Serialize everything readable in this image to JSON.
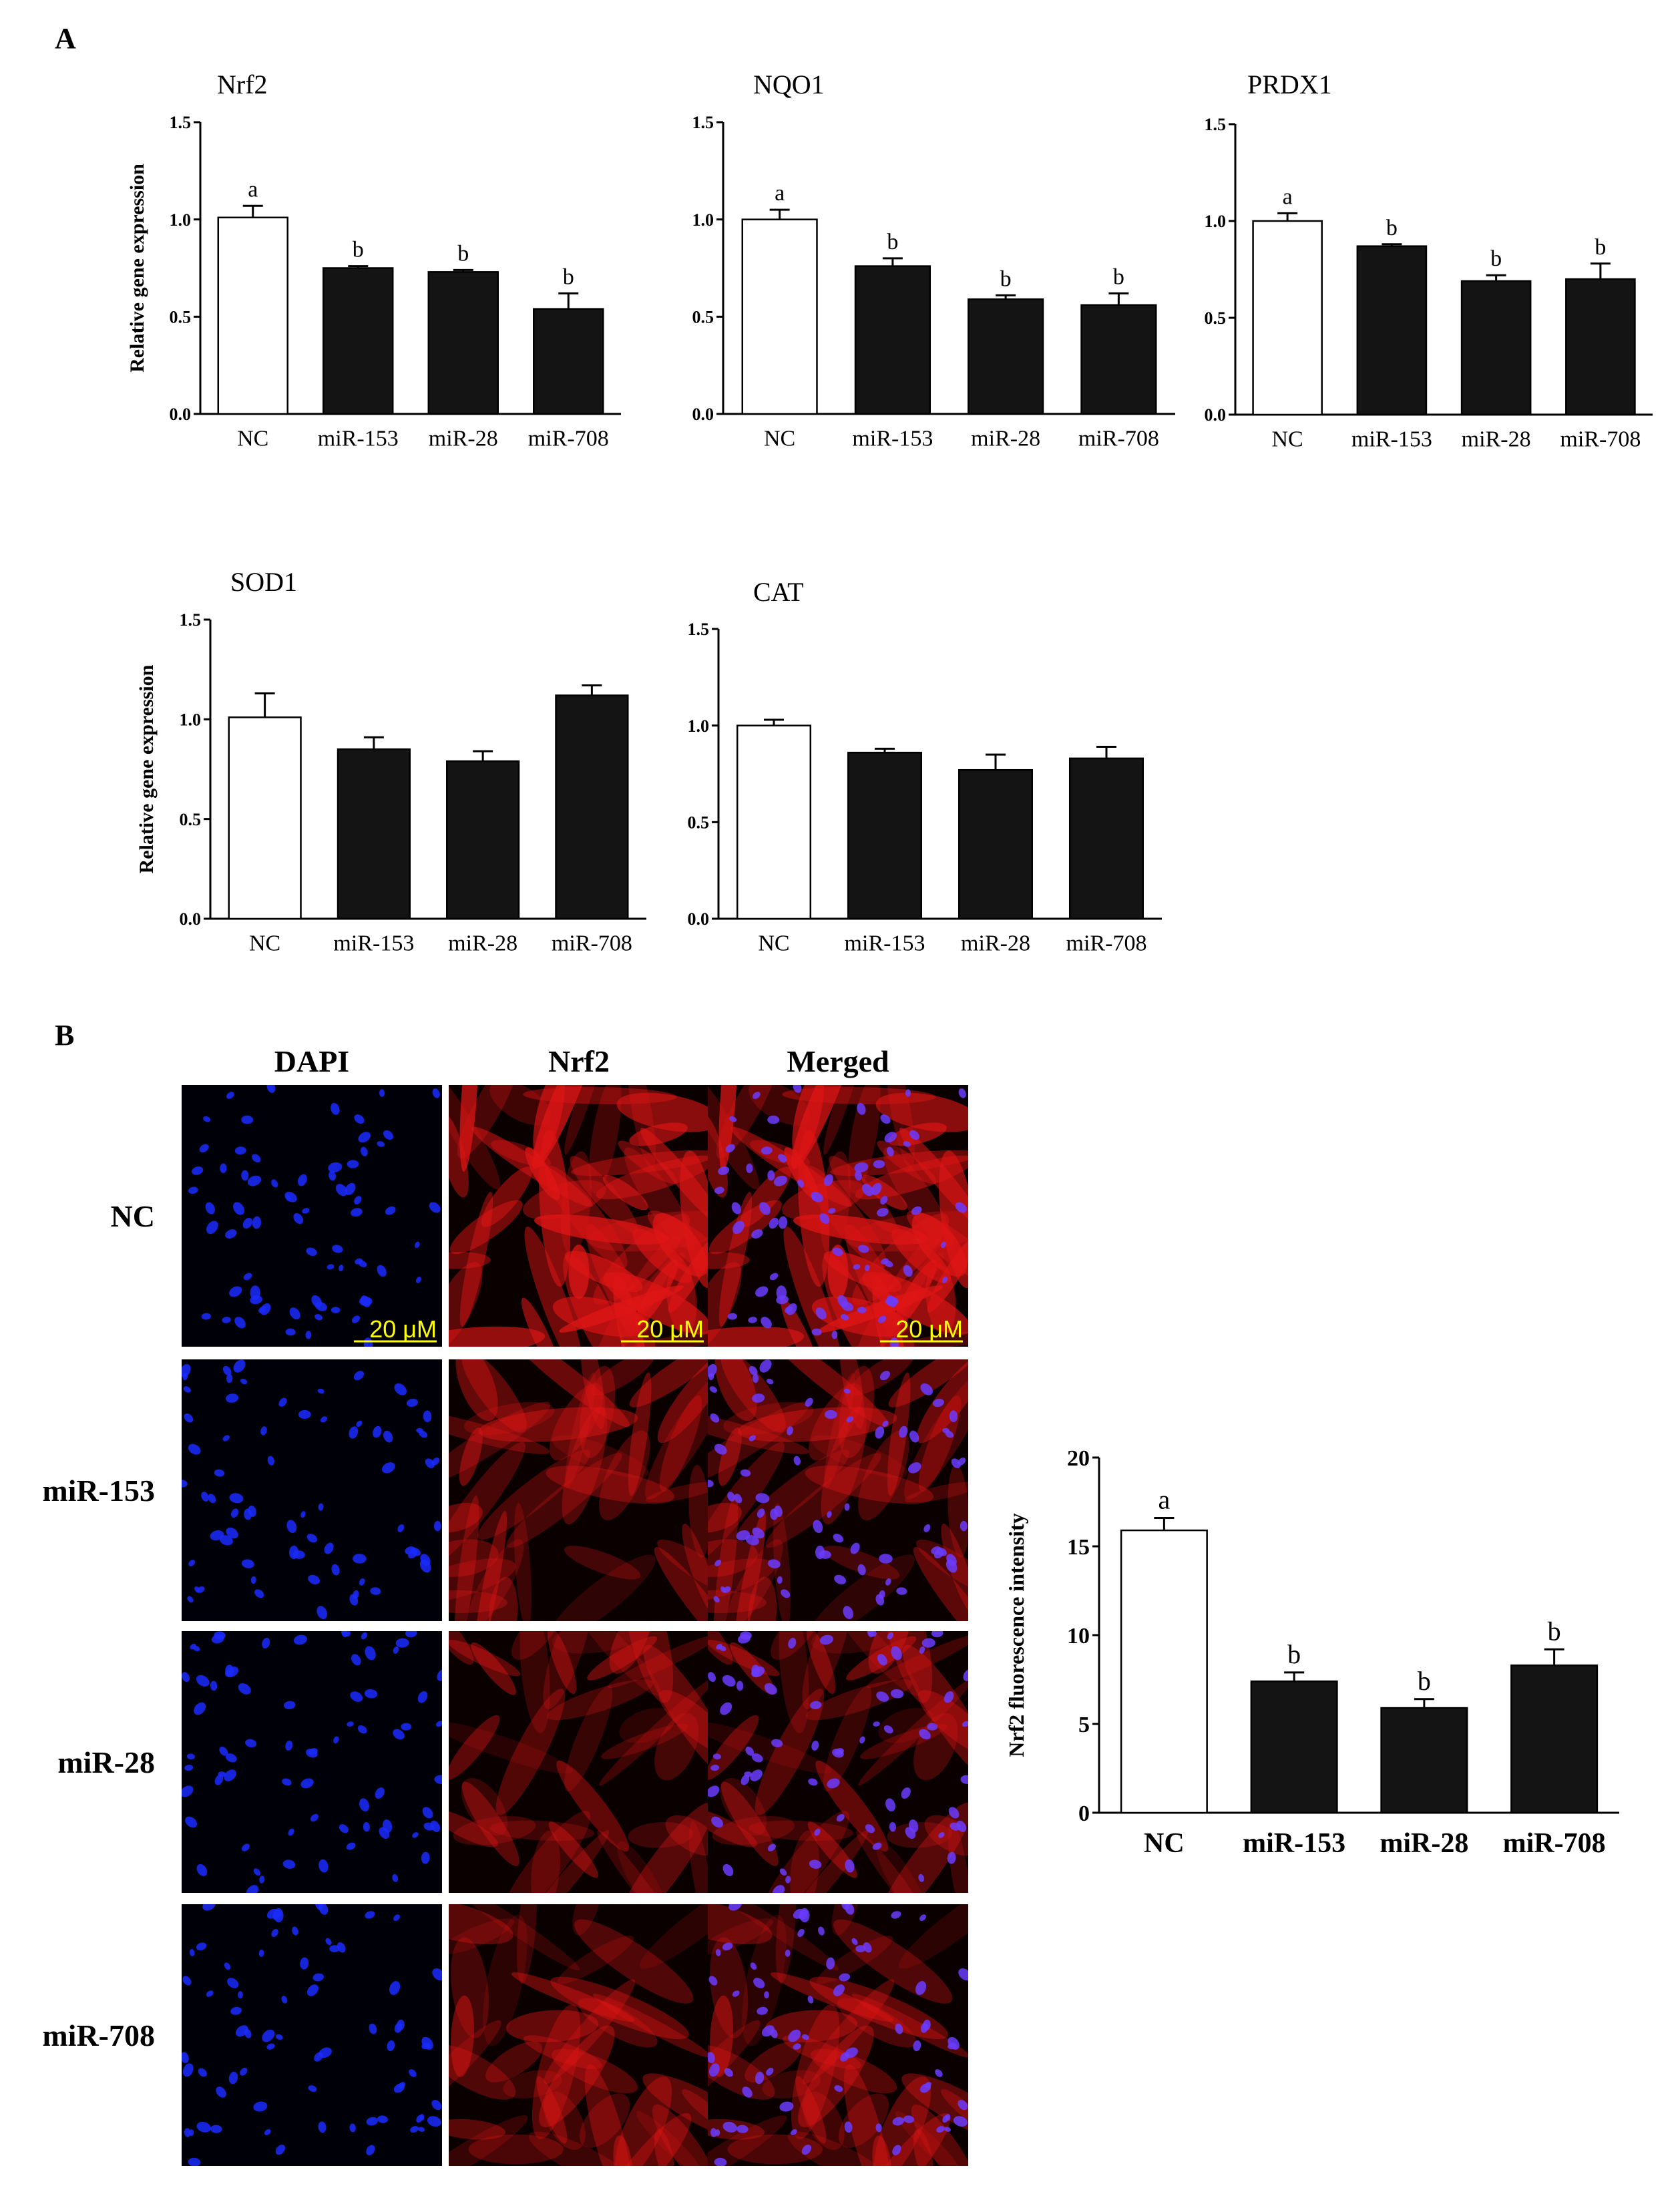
{
  "panel_a_label": "A",
  "panel_b_label": "B",
  "chart_data": [
    {
      "type": "bar",
      "title": "Nrf2",
      "ylabel": "Relative gene expression",
      "xlabel": "",
      "categories": [
        "NC",
        "miR-153",
        "miR-28",
        "miR-708"
      ],
      "values": [
        1.01,
        0.75,
        0.73,
        0.54
      ],
      "errors": [
        0.06,
        0.01,
        0.01,
        0.08
      ],
      "significance": [
        "a",
        "b",
        "b",
        "b"
      ],
      "ylim": [
        0,
        1.5
      ],
      "yticks": [
        "0.0",
        "0.5",
        "1.0",
        "1.5"
      ],
      "bar_colors": [
        "#ffffff",
        "#141414",
        "#141414",
        "#141414"
      ]
    },
    {
      "type": "bar",
      "title": "NQO1",
      "ylabel": "",
      "xlabel": "",
      "categories": [
        "NC",
        "miR-153",
        "miR-28",
        "miR-708"
      ],
      "values": [
        1.0,
        0.76,
        0.59,
        0.56
      ],
      "errors": [
        0.05,
        0.04,
        0.02,
        0.06
      ],
      "significance": [
        "a",
        "b",
        "b",
        "b"
      ],
      "ylim": [
        0,
        1.5
      ],
      "yticks": [
        "0.0",
        "0.5",
        "1.0",
        "1.5"
      ],
      "bar_colors": [
        "#ffffff",
        "#141414",
        "#141414",
        "#141414"
      ]
    },
    {
      "type": "bar",
      "title": "PRDX1",
      "ylabel": "",
      "xlabel": "",
      "categories": [
        "NC",
        "miR-153",
        "miR-28",
        "miR-708"
      ],
      "values": [
        1.0,
        0.87,
        0.69,
        0.7
      ],
      "errors": [
        0.04,
        0.01,
        0.03,
        0.08
      ],
      "significance": [
        "a",
        "b",
        "b",
        "b"
      ],
      "ylim": [
        0,
        1.5
      ],
      "yticks": [
        "0.0",
        "0.5",
        "1.0",
        "1.5"
      ],
      "bar_colors": [
        "#ffffff",
        "#141414",
        "#141414",
        "#141414"
      ]
    },
    {
      "type": "bar",
      "title": "SOD1",
      "ylabel": "Relative gene expression",
      "xlabel": "",
      "categories": [
        "NC",
        "miR-153",
        "miR-28",
        "miR-708"
      ],
      "values": [
        1.01,
        0.85,
        0.79,
        1.12
      ],
      "errors": [
        0.12,
        0.06,
        0.05,
        0.05
      ],
      "significance": [
        "",
        "",
        "",
        ""
      ],
      "ylim": [
        0,
        1.5
      ],
      "yticks": [
        "0.0",
        "0.5",
        "1.0",
        "1.5"
      ],
      "bar_colors": [
        "#ffffff",
        "#141414",
        "#141414",
        "#141414"
      ]
    },
    {
      "type": "bar",
      "title": "CAT",
      "ylabel": "",
      "xlabel": "",
      "categories": [
        "NC",
        "miR-153",
        "miR-28",
        "miR-708"
      ],
      "values": [
        1.0,
        0.86,
        0.77,
        0.83
      ],
      "errors": [
        0.03,
        0.02,
        0.08,
        0.06
      ],
      "significance": [
        "",
        "",
        "",
        ""
      ],
      "ylim": [
        0,
        1.5
      ],
      "yticks": [
        "0.0",
        "0.5",
        "1.0",
        "1.5"
      ],
      "bar_colors": [
        "#ffffff",
        "#141414",
        "#141414",
        "#141414"
      ]
    },
    {
      "type": "bar",
      "title": "",
      "ylabel": "Nrf2 fluorescence intensity",
      "xlabel": "",
      "categories": [
        "NC",
        "miR-153",
        "miR-28",
        "miR-708"
      ],
      "values": [
        15.9,
        7.4,
        5.9,
        8.3
      ],
      "errors": [
        0.7,
        0.5,
        0.5,
        0.9
      ],
      "significance": [
        "a",
        "b",
        "b",
        "b"
      ],
      "ylim": [
        0,
        20
      ],
      "yticks": [
        "0",
        "5",
        "10",
        "15",
        "20"
      ],
      "bar_colors": [
        "#ffffff",
        "#141414",
        "#141414",
        "#141414"
      ]
    }
  ],
  "microscopy": {
    "columns": [
      "DAPI",
      "Nrf2",
      "Merged"
    ],
    "rows": [
      {
        "label": "NC",
        "intensity": 1.0
      },
      {
        "label": "miR-153",
        "intensity": 0.5
      },
      {
        "label": "miR-28",
        "intensity": 0.45
      },
      {
        "label": "miR-708",
        "intensity": 0.5
      }
    ],
    "scale_bar": "20 μM",
    "channel_colors": {
      "dapi": "#1a2aff",
      "nrf2": "#e01515",
      "scale_text": "#ffff00"
    }
  }
}
